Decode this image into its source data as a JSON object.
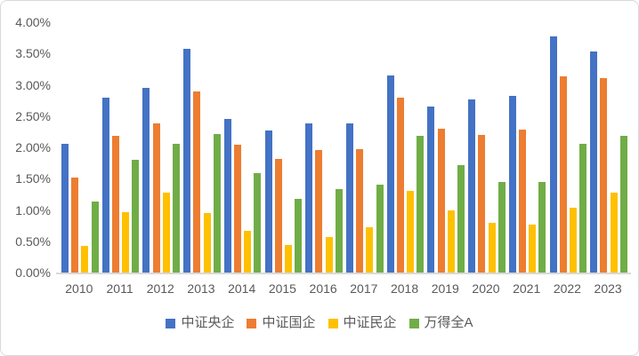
{
  "chart_data": {
    "type": "bar",
    "title": "",
    "categories": [
      "2010",
      "2011",
      "2012",
      "2013",
      "2014",
      "2015",
      "2016",
      "2017",
      "2018",
      "2019",
      "2020",
      "2021",
      "2022",
      "2023"
    ],
    "series": [
      {
        "name": "中证央企",
        "color": "#4472C4",
        "values": [
          2.05,
          2.8,
          2.95,
          3.58,
          2.46,
          2.27,
          2.38,
          2.38,
          3.15,
          2.65,
          2.77,
          2.82,
          3.77,
          3.53
        ]
      },
      {
        "name": "中证国企",
        "color": "#ED7D31",
        "values": [
          1.52,
          2.18,
          2.38,
          2.9,
          2.04,
          1.82,
          1.96,
          1.97,
          2.8,
          2.3,
          2.2,
          2.28,
          3.14,
          3.11
        ]
      },
      {
        "name": "中证民企",
        "color": "#FFC000",
        "values": [
          0.42,
          0.97,
          1.28,
          0.95,
          0.66,
          0.44,
          0.57,
          0.72,
          1.31,
          1.0,
          0.79,
          0.76,
          1.03,
          1.27
        ]
      },
      {
        "name": "万得全A",
        "color": "#70AD47",
        "values": [
          1.13,
          1.8,
          2.06,
          2.21,
          1.59,
          1.18,
          1.33,
          1.4,
          2.19,
          1.72,
          1.45,
          1.44,
          2.05,
          2.19
        ]
      }
    ],
    "xlabel": "",
    "ylabel": "",
    "ylim": [
      0,
      4.0
    ],
    "y_ticks": [
      "4.00%",
      "3.50%",
      "3.00%",
      "2.50%",
      "2.00%",
      "1.50%",
      "1.00%",
      "0.50%",
      "0.00%"
    ],
    "y_tick_step_pct": 0.5,
    "value_format": "percent_2dp",
    "grid": false,
    "legend_position": "bottom"
  },
  "style": {
    "axis_text_color": "#595959",
    "axis_line_color": "#D9D9D9",
    "frame_border_color": "#D9D9D9",
    "background": "#FFFFFF"
  }
}
